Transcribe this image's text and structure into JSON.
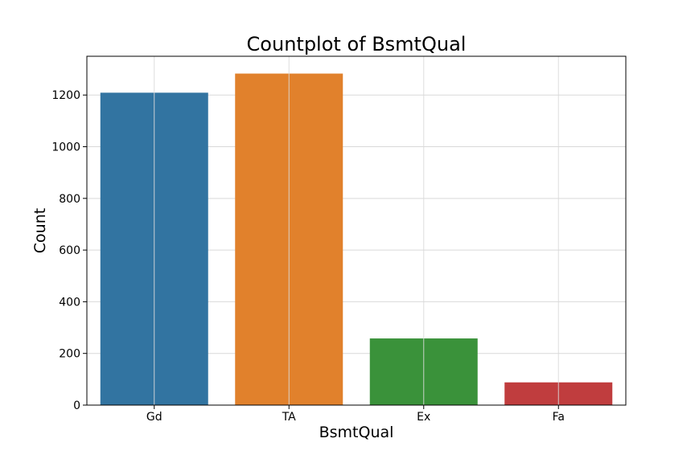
{
  "chart_data": {
    "type": "bar",
    "title": "Countplot of BsmtQual",
    "xlabel": "BsmtQual",
    "ylabel": "Count",
    "categories": [
      "Gd",
      "TA",
      "Ex",
      "Fa"
    ],
    "values": [
      1209,
      1283,
      258,
      88
    ],
    "colors": [
      "#3274a1",
      "#e1812c",
      "#3a923a",
      "#c03d3e"
    ],
    "yticks": [
      0,
      200,
      400,
      600,
      800,
      1000,
      1200
    ],
    "ylim": [
      0,
      1350
    ],
    "grid": true,
    "legend": "none"
  }
}
